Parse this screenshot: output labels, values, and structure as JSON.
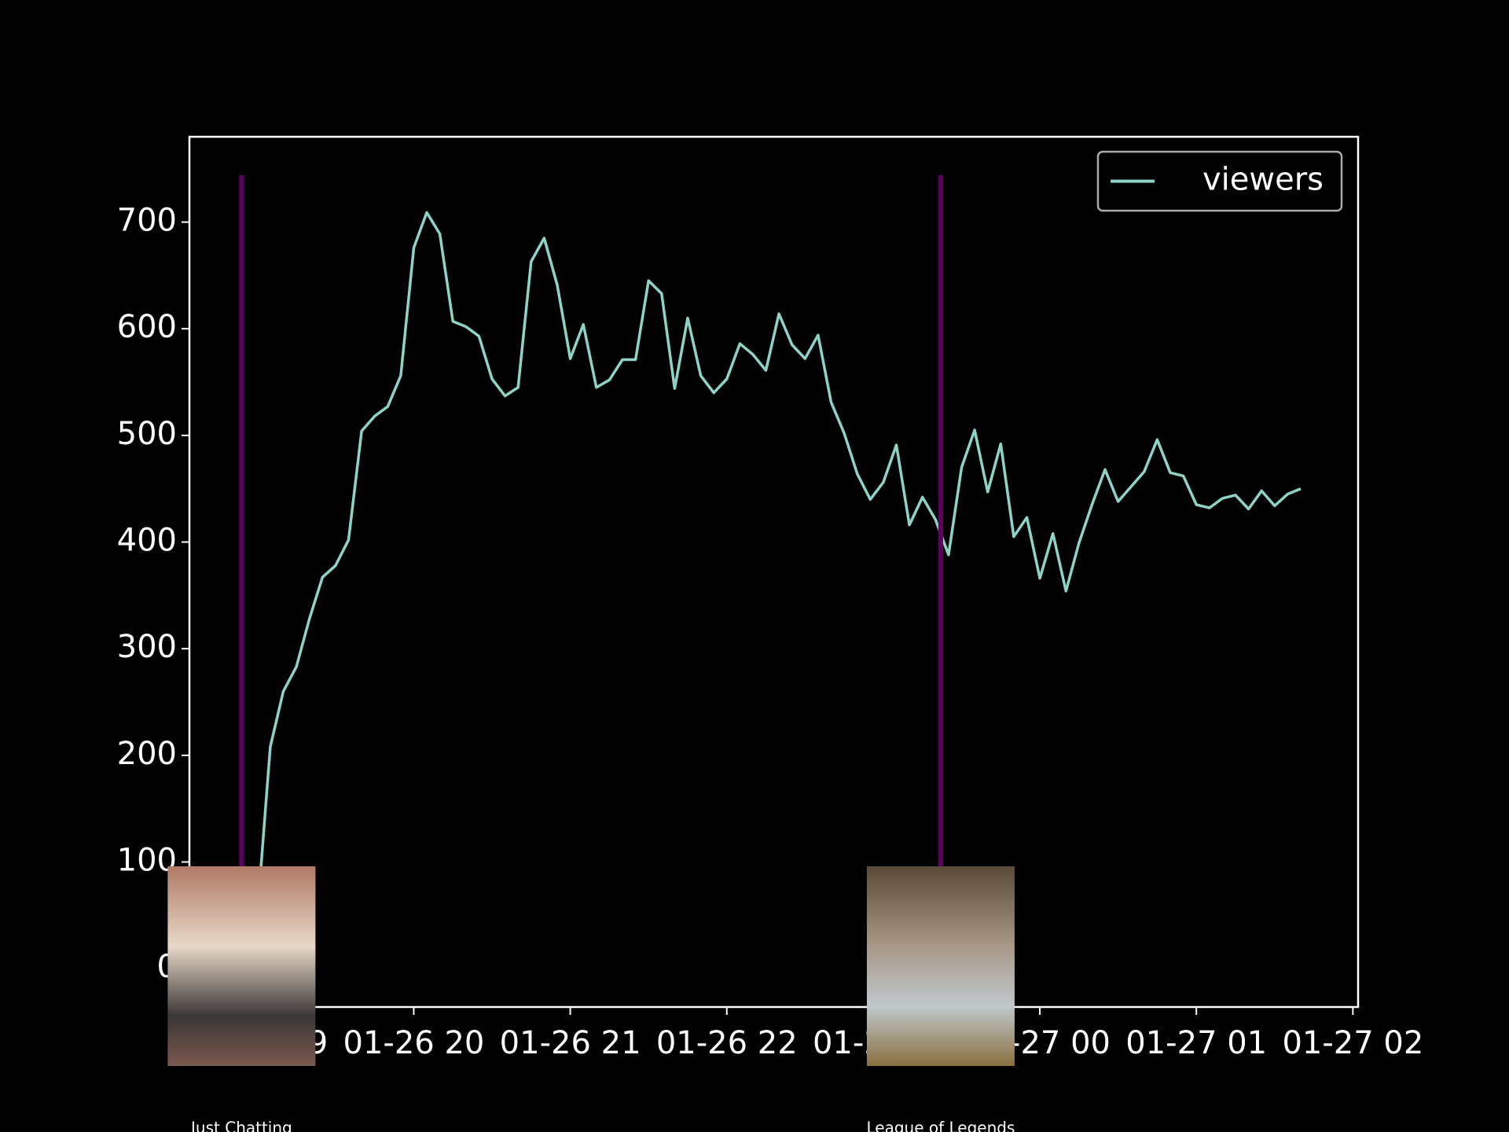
{
  "chart_data": {
    "type": "line",
    "x": [
      "01-26 19:00",
      "01-26 19:05",
      "01-26 19:10",
      "01-26 19:15",
      "01-26 19:20",
      "01-26 19:25",
      "01-26 19:30",
      "01-26 19:35",
      "01-26 19:40",
      "01-26 19:45",
      "01-26 19:50",
      "01-26 19:55",
      "01-26 20:00",
      "01-26 20:05",
      "01-26 20:10",
      "01-26 20:15",
      "01-26 20:20",
      "01-26 20:25",
      "01-26 20:30",
      "01-26 20:35",
      "01-26 20:40",
      "01-26 20:45",
      "01-26 20:50",
      "01-26 20:55",
      "01-26 21:00",
      "01-26 21:05",
      "01-26 21:10",
      "01-26 21:15",
      "01-26 21:20",
      "01-26 21:25",
      "01-26 21:30",
      "01-26 21:35",
      "01-26 21:40",
      "01-26 21:45",
      "01-26 21:50",
      "01-26 21:55",
      "01-26 22:00",
      "01-26 22:05",
      "01-26 22:10",
      "01-26 22:15",
      "01-26 22:20",
      "01-26 22:25",
      "01-26 22:30",
      "01-26 22:35",
      "01-26 22:40",
      "01-26 22:45",
      "01-26 22:50",
      "01-26 22:55",
      "01-26 23:00",
      "01-26 23:05",
      "01-26 23:10",
      "01-26 23:15",
      "01-26 23:20",
      "01-26 23:25",
      "01-26 23:30",
      "01-26 23:35",
      "01-26 23:40",
      "01-26 23:45",
      "01-26 23:50",
      "01-26 23:55",
      "01-27 00:00",
      "01-27 00:05",
      "01-27 00:10",
      "01-27 00:15",
      "01-27 00:20",
      "01-27 00:25",
      "01-27 00:30",
      "01-27 00:35",
      "01-27 00:40",
      "01-27 00:45",
      "01-27 00:50",
      "01-27 00:55",
      "01-27 01:00",
      "01-27 01:05",
      "01-27 01:10",
      "01-27 01:15",
      "01-27 01:20",
      "01-27 01:25",
      "01-27 01:30",
      "01-27 01:35",
      "01-27 01:40"
    ],
    "series": [
      {
        "name": "viewers",
        "color": "#8dd3c7",
        "values": [
          50,
          208,
          260,
          283,
          328,
          367,
          378,
          402,
          504,
          518,
          527,
          556,
          676,
          709,
          689,
          607,
          602,
          593,
          553,
          537,
          545,
          663,
          685,
          641,
          572,
          604,
          545,
          552,
          571,
          571,
          645,
          633,
          544,
          610,
          556,
          540,
          553,
          586,
          576,
          561,
          614,
          585,
          572,
          594,
          531,
          502,
          464,
          440,
          456,
          491,
          416,
          442,
          421,
          388,
          470,
          505,
          447,
          492,
          405,
          423,
          366,
          408,
          354,
          399,
          435,
          468,
          438,
          452,
          466,
          496,
          465,
          462,
          435,
          432,
          441,
          444,
          431,
          448,
          434,
          445,
          450
        ]
      }
    ],
    "xlim": [
      "01-26 18:34",
      "01-27 02:02"
    ],
    "xticks": [
      "01-26 19",
      "01-26 20",
      "01-26 21",
      "01-26 22",
      "01-26 23",
      "01-27 00",
      "01-27 01",
      "01-27 02"
    ],
    "ylim": [
      -36,
      780
    ],
    "yticks": [
      0,
      100,
      200,
      300,
      400,
      500,
      600,
      700
    ],
    "legend": "upper right",
    "markers": [
      {
        "x": "01-26 18:54",
        "label": "Just Chatting"
      },
      {
        "x": "01-26 23:22",
        "label": "League of Legends"
      }
    ],
    "marker_color": "#5e0060"
  }
}
